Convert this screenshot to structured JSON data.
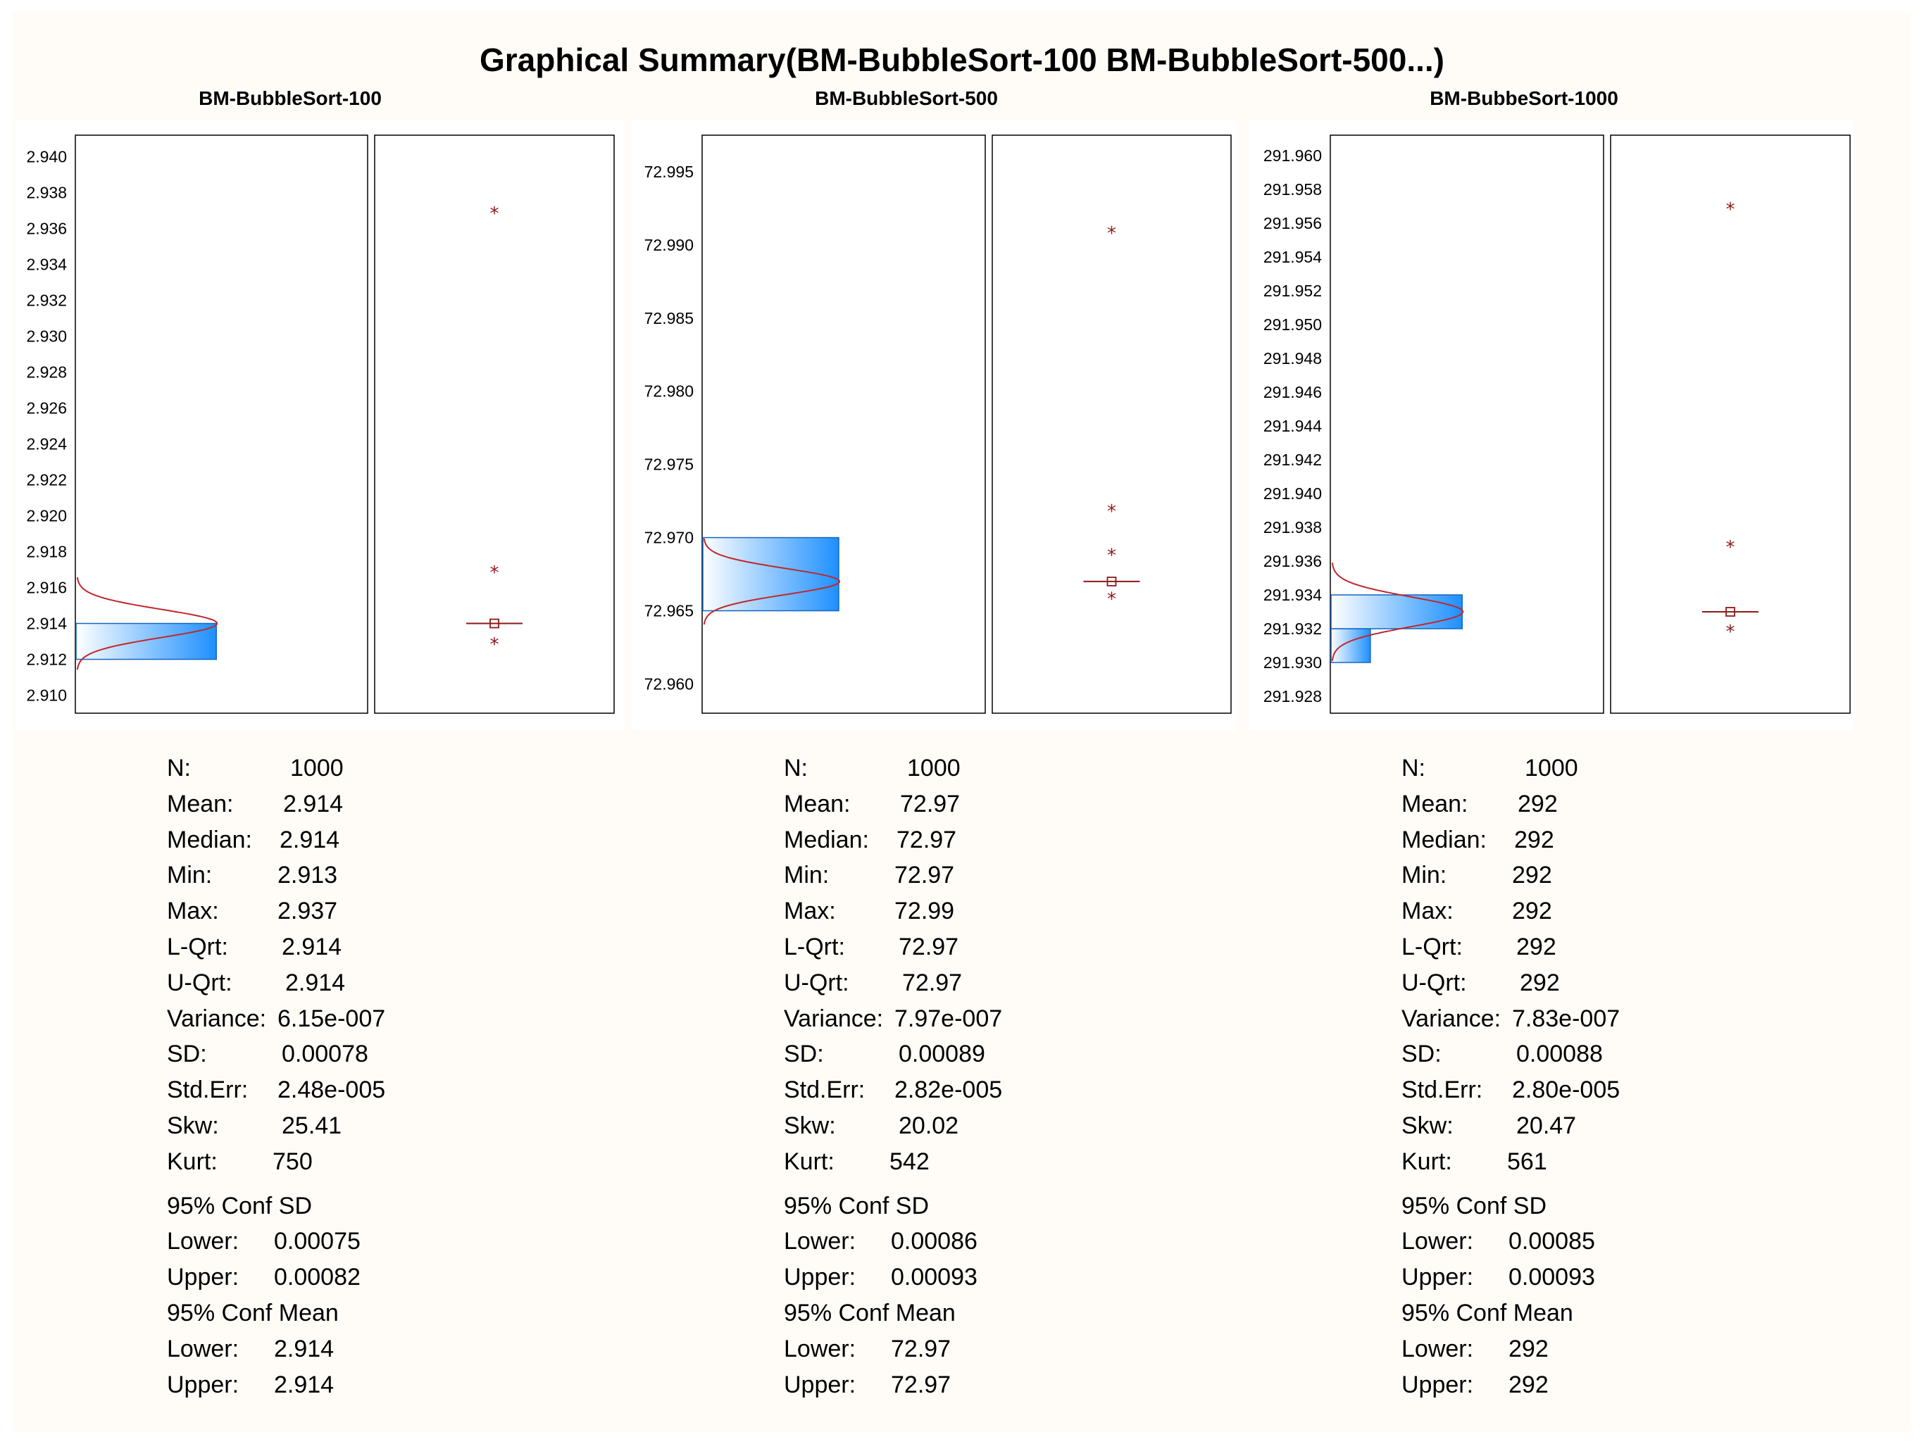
{
  "title": "Graphical Summary(BM-BubbleSort-100 BM-BubbleSort-500...)",
  "colors": {
    "background": "#fffcf7",
    "histogram_fill": "#1e90ff",
    "curve": "#c0272d",
    "outlier": "#8b1a1a"
  },
  "chart_data": [
    {
      "type": "histogram+boxplot",
      "title": "BM-BubbleSort-100",
      "ylim": [
        2.909,
        2.9412
      ],
      "yticks": [
        "2.910",
        "2.912",
        "2.914",
        "2.916",
        "2.918",
        "2.920",
        "2.922",
        "2.924",
        "2.926",
        "2.928",
        "2.930",
        "2.932",
        "2.934",
        "2.936",
        "2.938",
        "2.940"
      ],
      "bins": [
        {
          "from": 2.912,
          "to": 2.914,
          "height": 1.0
        }
      ],
      "normal_curve": {
        "mean": 2.914,
        "sd": 0.00078
      },
      "box": {
        "q1": 2.914,
        "median": 2.914,
        "q3": 2.914,
        "mean": 2.914
      },
      "outliers": [
        2.937,
        2.917,
        2.913
      ],
      "stats": [
        [
          "N:",
          "1000"
        ],
        [
          "Mean:",
          "2.914"
        ],
        [
          "Median:",
          "2.914"
        ],
        [
          "Min:",
          "2.913"
        ],
        [
          "Max:",
          "2.937"
        ],
        [
          "L-Qrt:",
          "2.914"
        ],
        [
          "U-Qrt:",
          "2.914"
        ],
        [
          "Variance:",
          "6.15e-007"
        ],
        [
          "SD:",
          "0.00078"
        ],
        [
          "Std.Err:",
          "2.48e-005"
        ],
        [
          "Skw:",
          "25.41"
        ],
        [
          "Kurt:",
          "750"
        ]
      ],
      "conf_sd": {
        "heading": "95% Conf SD",
        "lower_label": "Lower:",
        "lower": "0.00075",
        "upper_label": "Upper:",
        "upper": "0.00082"
      },
      "conf_mean": {
        "heading": "95% Conf Mean",
        "lower_label": "Lower:",
        "lower": "2.914",
        "upper_label": "Upper:",
        "upper": "2.914"
      }
    },
    {
      "type": "histogram+boxplot",
      "title": "BM-BubbleSort-500",
      "ylim": [
        72.958,
        72.9975
      ],
      "yticks": [
        "72.960",
        "72.965",
        "72.970",
        "72.975",
        "72.980",
        "72.985",
        "72.990",
        "72.995"
      ],
      "bins": [
        {
          "from": 72.965,
          "to": 72.97,
          "height": 1.0
        }
      ],
      "normal_curve": {
        "mean": 72.967,
        "sd": 0.00089
      },
      "box": {
        "q1": 72.967,
        "median": 72.967,
        "q3": 72.967,
        "mean": 72.967
      },
      "outliers": [
        72.991,
        72.972,
        72.969,
        72.966
      ],
      "stats": [
        [
          "N:",
          "1000"
        ],
        [
          "Mean:",
          "72.97"
        ],
        [
          "Median:",
          "72.97"
        ],
        [
          "Min:",
          "72.97"
        ],
        [
          "Max:",
          "72.99"
        ],
        [
          "L-Qrt:",
          "72.97"
        ],
        [
          "U-Qrt:",
          "72.97"
        ],
        [
          "Variance:",
          "7.97e-007"
        ],
        [
          "SD:",
          "0.00089"
        ],
        [
          "Std.Err:",
          "2.82e-005"
        ],
        [
          "Skw:",
          "20.02"
        ],
        [
          "Kurt:",
          "542"
        ]
      ],
      "conf_sd": {
        "heading": "95% Conf SD",
        "lower_label": "Lower:",
        "lower": "0.00086",
        "upper_label": "Upper:",
        "upper": "0.00093"
      },
      "conf_mean": {
        "heading": "95% Conf Mean",
        "lower_label": "Lower:",
        "lower": "72.97",
        "upper_label": "Upper:",
        "upper": "72.97"
      }
    },
    {
      "type": "histogram+boxplot",
      "title": "BM-BubbeSort-1000",
      "ylim": [
        291.927,
        291.9612
      ],
      "yticks": [
        "291.928",
        "291.930",
        "291.932",
        "291.934",
        "291.936",
        "291.938",
        "291.940",
        "291.942",
        "291.944",
        "291.946",
        "291.948",
        "291.950",
        "291.952",
        "291.954",
        "291.956",
        "291.958",
        "291.960"
      ],
      "bins": [
        {
          "from": 291.93,
          "to": 291.932,
          "height": 0.3
        },
        {
          "from": 291.932,
          "to": 291.934,
          "height": 1.0
        }
      ],
      "normal_curve": {
        "mean": 291.933,
        "sd": 0.00088
      },
      "box": {
        "q1": 291.933,
        "median": 291.933,
        "q3": 291.933,
        "mean": 291.933
      },
      "outliers": [
        291.957,
        291.937,
        291.932
      ],
      "stats": [
        [
          "N:",
          "1000"
        ],
        [
          "Mean:",
          "292"
        ],
        [
          "Median:",
          "292"
        ],
        [
          "Min:",
          "292"
        ],
        [
          "Max:",
          "292"
        ],
        [
          "L-Qrt:",
          "292"
        ],
        [
          "U-Qrt:",
          "292"
        ],
        [
          "Variance:",
          "7.83e-007"
        ],
        [
          "SD:",
          "0.00088"
        ],
        [
          "Std.Err:",
          "2.80e-005"
        ],
        [
          "Skw:",
          "20.47"
        ],
        [
          "Kurt:",
          "561"
        ]
      ],
      "conf_sd": {
        "heading": "95% Conf SD",
        "lower_label": "Lower:",
        "lower": "0.00085",
        "upper_label": "Upper:",
        "upper": "0.00093"
      },
      "conf_mean": {
        "heading": "95% Conf Mean",
        "lower_label": "Lower:",
        "lower": "292",
        "upper_label": "Upper:",
        "upper": "292"
      }
    }
  ]
}
